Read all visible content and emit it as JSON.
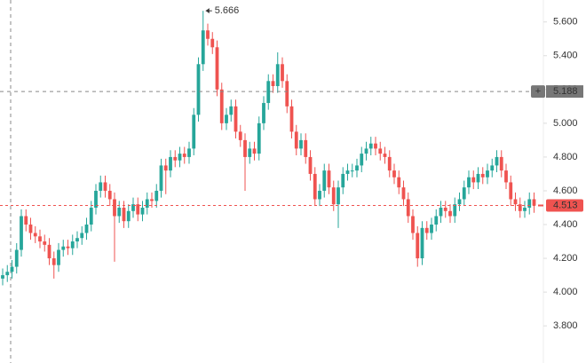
{
  "chart_data": {
    "type": "candlestick",
    "open": [
      4.08,
      4.1,
      4.12,
      4.15,
      4.25,
      4.45,
      4.4,
      4.35,
      4.33,
      4.3,
      4.28,
      4.2,
      4.16,
      4.25,
      4.27,
      4.26,
      4.3,
      4.32,
      4.35,
      4.4,
      4.5,
      4.6,
      4.65,
      4.6,
      4.55,
      4.45,
      4.5,
      4.42,
      4.48,
      4.52,
      4.46,
      4.5,
      4.55,
      4.54,
      4.6,
      4.75,
      4.72,
      4.8,
      4.78,
      4.82,
      4.8,
      4.85,
      5.05,
      5.35,
      5.55,
      5.5,
      5.45,
      5.2,
      5.0,
      5.05,
      5.1,
      4.95,
      4.9,
      4.8,
      4.85,
      4.82,
      5.0,
      5.12,
      5.25,
      5.22,
      5.35,
      5.25,
      5.1,
      4.95,
      4.85,
      4.9,
      4.8,
      4.7,
      4.55,
      4.6,
      4.72,
      4.62,
      4.52,
      4.62,
      4.7,
      4.72,
      4.72,
      4.75,
      4.82,
      4.85,
      4.88,
      4.85,
      4.82,
      4.8,
      4.72,
      4.68,
      4.62,
      4.55,
      4.45,
      4.35,
      4.2,
      4.38,
      4.35,
      4.4,
      4.45,
      4.5,
      4.48,
      4.45,
      4.52,
      4.55,
      4.62,
      4.68,
      4.65,
      4.7,
      4.68,
      4.72,
      4.75,
      4.8,
      4.72,
      4.65,
      4.55,
      4.52,
      4.48,
      4.5,
      4.55
    ],
    "high": [
      4.14,
      4.16,
      4.19,
      4.29,
      4.49,
      4.49,
      4.44,
      4.39,
      4.37,
      4.34,
      4.32,
      4.24,
      4.29,
      4.31,
      4.31,
      4.34,
      4.36,
      4.39,
      4.44,
      4.54,
      4.64,
      4.69,
      4.69,
      4.64,
      4.59,
      4.54,
      4.54,
      4.52,
      4.56,
      4.56,
      4.54,
      4.59,
      4.59,
      4.64,
      4.79,
      4.79,
      4.84,
      4.84,
      4.86,
      4.86,
      4.89,
      5.09,
      5.39,
      5.666,
      5.59,
      5.54,
      5.49,
      5.24,
      5.09,
      5.14,
      5.14,
      4.99,
      4.94,
      4.89,
      4.89,
      5.04,
      5.16,
      5.29,
      5.29,
      5.42,
      5.39,
      5.29,
      5.14,
      4.99,
      4.94,
      4.94,
      4.84,
      4.74,
      4.64,
      4.76,
      4.76,
      4.66,
      4.66,
      4.74,
      4.76,
      4.76,
      4.79,
      4.86,
      4.89,
      4.92,
      4.92,
      4.89,
      4.86,
      4.84,
      4.76,
      4.72,
      4.66,
      4.59,
      4.49,
      4.39,
      4.42,
      4.42,
      4.44,
      4.49,
      4.54,
      4.54,
      4.52,
      4.56,
      4.59,
      4.66,
      4.72,
      4.72,
      4.74,
      4.74,
      4.76,
      4.79,
      4.84,
      4.84,
      4.76,
      4.69,
      4.59,
      4.56,
      4.54,
      4.59,
      4.59
    ],
    "low": [
      4.04,
      4.06,
      4.08,
      4.11,
      4.21,
      4.36,
      4.31,
      4.29,
      4.26,
      4.24,
      4.16,
      4.08,
      4.12,
      4.21,
      4.22,
      4.22,
      4.26,
      4.28,
      4.31,
      4.36,
      4.46,
      4.56,
      4.56,
      4.51,
      4.18,
      4.41,
      4.38,
      4.38,
      4.44,
      4.42,
      4.42,
      4.46,
      4.5,
      4.5,
      4.56,
      4.58,
      4.68,
      4.74,
      4.74,
      4.76,
      4.76,
      4.81,
      5.01,
      5.31,
      5.46,
      5.41,
      5.16,
      4.96,
      4.96,
      5.01,
      4.91,
      4.86,
      4.6,
      4.76,
      4.78,
      4.78,
      4.96,
      5.08,
      5.18,
      5.18,
      5.21,
      5.06,
      4.91,
      4.81,
      4.81,
      4.76,
      4.66,
      4.51,
      4.51,
      4.56,
      4.58,
      4.48,
      4.38,
      4.58,
      4.66,
      4.68,
      4.68,
      4.71,
      4.78,
      4.81,
      4.81,
      4.78,
      4.76,
      4.68,
      4.64,
      4.58,
      4.51,
      4.41,
      4.31,
      4.15,
      4.16,
      4.31,
      4.31,
      4.36,
      4.41,
      4.44,
      4.41,
      4.41,
      4.48,
      4.51,
      4.58,
      4.61,
      4.61,
      4.64,
      4.64,
      4.68,
      4.71,
      4.68,
      4.61,
      4.51,
      4.48,
      4.44,
      4.44,
      4.46,
      4.47
    ],
    "close": [
      4.1,
      4.12,
      4.15,
      4.25,
      4.45,
      4.4,
      4.35,
      4.33,
      4.3,
      4.28,
      4.2,
      4.16,
      4.25,
      4.27,
      4.26,
      4.3,
      4.32,
      4.35,
      4.4,
      4.5,
      4.6,
      4.65,
      4.6,
      4.55,
      4.45,
      4.5,
      4.42,
      4.48,
      4.52,
      4.46,
      4.5,
      4.55,
      4.54,
      4.6,
      4.75,
      4.72,
      4.8,
      4.78,
      4.82,
      4.8,
      4.85,
      5.05,
      5.35,
      5.55,
      5.5,
      5.45,
      5.2,
      5.0,
      5.05,
      5.1,
      4.95,
      4.9,
      4.8,
      4.85,
      4.82,
      5.0,
      5.12,
      5.25,
      5.22,
      5.35,
      5.25,
      5.1,
      4.95,
      4.85,
      4.9,
      4.8,
      4.7,
      4.55,
      4.6,
      4.72,
      4.62,
      4.52,
      4.62,
      4.7,
      4.72,
      4.72,
      4.75,
      4.82,
      4.85,
      4.88,
      4.85,
      4.82,
      4.8,
      4.72,
      4.68,
      4.62,
      4.55,
      4.45,
      4.35,
      4.2,
      4.38,
      4.35,
      4.4,
      4.45,
      4.5,
      4.48,
      4.45,
      4.52,
      4.55,
      4.62,
      4.68,
      4.65,
      4.7,
      4.68,
      4.72,
      4.75,
      4.8,
      4.72,
      4.65,
      4.55,
      4.52,
      4.48,
      4.5,
      4.55,
      4.513
    ],
    "up_color": "#26a69a",
    "down_color": "#ef5350",
    "ylim": [
      3.58,
      5.73
    ],
    "yticks": [
      {
        "value": 3.8,
        "label": "3.800"
      },
      {
        "value": 4.0,
        "label": "4.000"
      },
      {
        "value": 4.2,
        "label": "4.200"
      },
      {
        "value": 4.4,
        "label": "4.400"
      },
      {
        "value": 4.6,
        "label": "4.600"
      },
      {
        "value": 4.8,
        "label": "4.800"
      },
      {
        "value": 5.0,
        "label": "5.000"
      },
      {
        "value": 5.2,
        "label": "5.200"
      },
      {
        "value": 5.4,
        "label": "5.400"
      },
      {
        "value": 5.6,
        "label": "5.600"
      }
    ],
    "crosshair": {
      "value": 5.188,
      "label": "5.188"
    },
    "last_price": {
      "value": 4.513,
      "label": "4.513"
    },
    "high_annotation": {
      "value": 5.666,
      "label": "5.666"
    }
  }
}
